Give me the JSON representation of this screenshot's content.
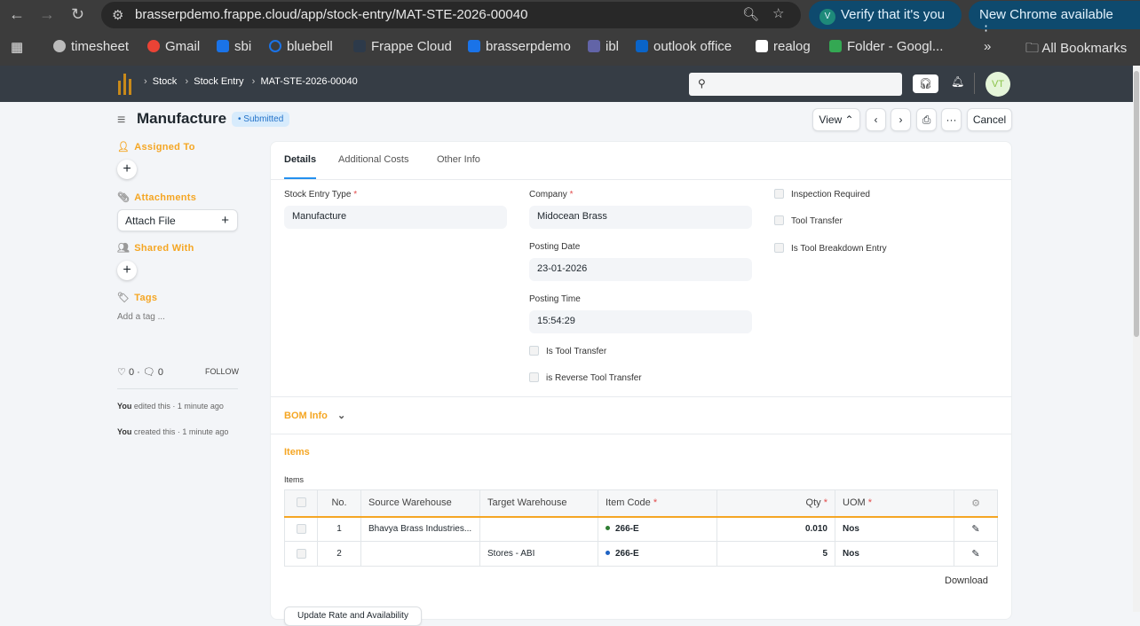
{
  "browser": {
    "url": "brasserpdemo.frappe.cloud/app/stock-entry/MAT-STE-2026-00040",
    "verify": "Verify that it's you",
    "update": "New Chrome available",
    "bookmarks": [
      {
        "label": "timesheet",
        "color": "#bbb"
      },
      {
        "label": "Gmail",
        "color": "#ea4335"
      },
      {
        "label": "sbi",
        "color": "#1a73e8"
      },
      {
        "label": "bluebell",
        "color": "#1a73e8"
      },
      {
        "label": "Frappe Cloud",
        "color": "#2d3a4a"
      },
      {
        "label": "brasserpdemo",
        "color": "#1a73e8"
      },
      {
        "label": "ibl",
        "color": "#6264a7"
      },
      {
        "label": "outlook office",
        "color": "#0a64c8"
      },
      {
        "label": "realog",
        "color": "#fff"
      },
      {
        "label": "Folder - Googl...",
        "color": "#34a853"
      }
    ],
    "all_bookmarks": "All Bookmarks"
  },
  "breadcrumb": [
    "Stock",
    "Stock Entry",
    "MAT-STE-2026-00040"
  ],
  "user_initials": "VT",
  "title": "Manufacture",
  "status": "Submitted",
  "toolbar": {
    "view": "View",
    "cancel": "Cancel"
  },
  "sidebar": {
    "assigned": "Assigned To",
    "attachments": "Attachments",
    "attach_file": "Attach File",
    "shared": "Shared With",
    "tags": "Tags",
    "add_tag": "Add a tag ...",
    "likes": "0",
    "comments": "0",
    "follow": "FOLLOW",
    "activity": [
      {
        "who": "You",
        "text": " edited this · 1 minute ago"
      },
      {
        "who": "You",
        "text": " created this · 1 minute ago"
      }
    ]
  },
  "tabs": [
    "Details",
    "Additional Costs",
    "Other Info"
  ],
  "form": {
    "stock_entry_type_label": "Stock Entry Type",
    "stock_entry_type": "Manufacture",
    "company_label": "Company",
    "company": "Midocean Brass",
    "posting_date_label": "Posting Date",
    "posting_date": "23-01-2026",
    "posting_time_label": "Posting Time",
    "posting_time": "15:54:29",
    "is_tool_transfer": "Is Tool Transfer",
    "is_reverse": "is Reverse Tool Transfer",
    "inspection": "Inspection Required",
    "tool_transfer": "Tool Transfer",
    "tool_breakdown": "Is Tool Breakdown Entry"
  },
  "bom_info": "BOM Info",
  "items_section": "Items",
  "items_label": "Items",
  "table": {
    "headers": [
      "No.",
      "Source Warehouse",
      "Target Warehouse",
      "Item Code",
      "Qty",
      "UOM"
    ],
    "rows": [
      {
        "no": "1",
        "source": "Bhavya Brass Industries...",
        "target": "",
        "item": "266-E",
        "item_color": "#2e7d32",
        "qty": "0.010",
        "uom": "Nos"
      },
      {
        "no": "2",
        "source": "",
        "target": "Stores - ABI",
        "item": "266-E",
        "item_color": "#1e63c4",
        "qty": "5",
        "uom": "Nos"
      }
    ]
  },
  "download": "Download",
  "update_rate": "Update Rate and Availability"
}
